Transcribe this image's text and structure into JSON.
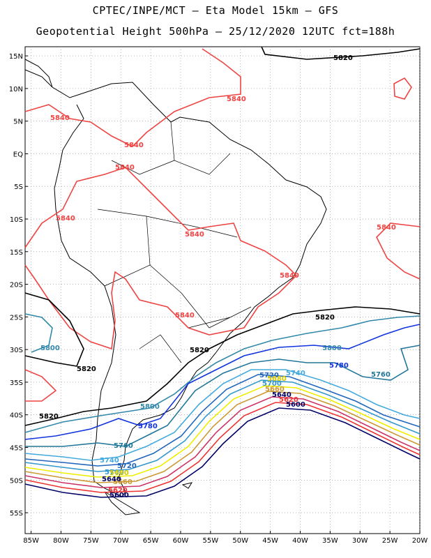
{
  "title_line1": "CPTEC/INPE/MCT –  Eta Model 15km – GFS",
  "title_line2": "Geopotential Height 500hPa – 25/12/2020 12UTC fct=188h",
  "lat_labels": [
    {
      "text": "15N",
      "lat": 15
    },
    {
      "text": "10N",
      "lat": 10
    },
    {
      "text": "5N",
      "lat": 5
    },
    {
      "text": "EQ",
      "lat": 0
    },
    {
      "text": "5S",
      "lat": -5
    },
    {
      "text": "10S",
      "lat": -10
    },
    {
      "text": "15S",
      "lat": -15
    },
    {
      "text": "20S",
      "lat": -20
    },
    {
      "text": "25S",
      "lat": -25
    },
    {
      "text": "30S",
      "lat": -30
    },
    {
      "text": "35S",
      "lat": -35
    },
    {
      "text": "40S",
      "lat": -40
    },
    {
      "text": "45S",
      "lat": -45
    },
    {
      "text": "50S",
      "lat": -50
    },
    {
      "text": "55S",
      "lat": -55
    }
  ],
  "lon_labels": [
    {
      "text": "85W",
      "lon": -85
    },
    {
      "text": "80W",
      "lon": -80
    },
    {
      "text": "75W",
      "lon": -75
    },
    {
      "text": "70W",
      "lon": -70
    },
    {
      "text": "65W",
      "lon": -65
    },
    {
      "text": "60W",
      "lon": -60
    },
    {
      "text": "55W",
      "lon": -55
    },
    {
      "text": "50W",
      "lon": -50
    },
    {
      "text": "45W",
      "lon": -45
    },
    {
      "text": "40W",
      "lon": -40
    },
    {
      "text": "35W",
      "lon": -35
    },
    {
      "text": "30W",
      "lon": -30
    },
    {
      "text": "25W",
      "lon": -25
    },
    {
      "text": "20W",
      "lon": -20
    }
  ],
  "contours": [
    {
      "value": "5600",
      "color": "#000066"
    },
    {
      "value": "5620",
      "color": "#ee3333"
    },
    {
      "value": "5640",
      "color": "#cc3366"
    },
    {
      "value": "5660",
      "color": "#cc9933"
    },
    {
      "value": "5680",
      "color": "#eeee00"
    },
    {
      "value": "5700",
      "color": "#3399cc"
    },
    {
      "value": "5720",
      "color": "#2266bb"
    },
    {
      "value": "5740",
      "color": "#44aadd"
    },
    {
      "value": "5760",
      "color": "#227799"
    },
    {
      "value": "5780",
      "color": "#1133dd"
    },
    {
      "value": "5800",
      "color": "#3388aa"
    },
    {
      "value": "5820",
      "color": "#000000"
    },
    {
      "value": "5840",
      "color": "#ee4444"
    }
  ],
  "labels": {
    "l5820_top": "5820",
    "l5820_mid": "5820",
    "l5820_right": "5820",
    "l5820_left": "5820",
    "l5820_sw": "5820",
    "l5840_a": "5840",
    "l5840_b": "5840",
    "l5840_c": "5840",
    "l5840_d": "5840",
    "l5840_e": "5840",
    "l5840_f": "5840",
    "l5840_g": "5840",
    "l5840_h": "5840",
    "l5840_i": "5840",
    "l5800_a": "5800",
    "l5800_b": "5800",
    "l5800_c": "5800",
    "l5780_a": "5780",
    "l5780_b": "5780",
    "l5760_a": "5760",
    "l5760_b": "5760",
    "l5740_a": "5740",
    "l5740_b": "5740",
    "l5720_a": "5720",
    "l5720_b": "5720",
    "l5700_a": "5700",
    "l5700_b": "5700",
    "l5680_a": "5680",
    "l5680_b": "5680",
    "l5660_a": "5660",
    "l5660_b": "5660",
    "l5640_a": "5640",
    "l5640_b": "5640",
    "l5620_a": "5620",
    "l5620_b": "5620",
    "l5600_a": "5600",
    "l5600_b": "5600"
  }
}
